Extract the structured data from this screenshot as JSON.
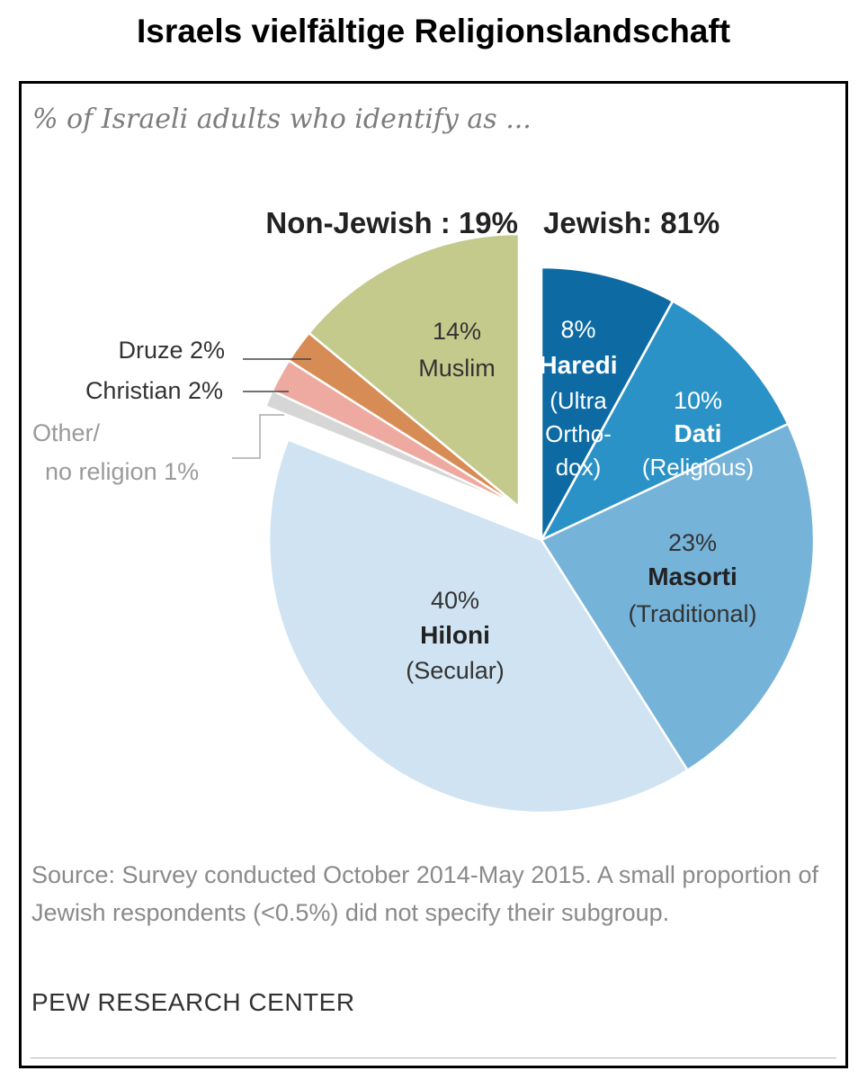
{
  "page_title": "Israels vielfältige Religionslandschaft",
  "chart_data": {
    "type": "pie",
    "subtitle": "% of Israeli adults who identify as ...",
    "groups": [
      {
        "label": "Non-Jewish : 19%",
        "value": 19
      },
      {
        "label": "Jewish: 81%",
        "value": 81
      }
    ],
    "slices": [
      {
        "key": "haredi",
        "group": "Jewish",
        "value": 8,
        "pct_label": "8%",
        "name": "Haredi",
        "sub": [
          "(Ultra",
          "Ortho-",
          "dox)"
        ],
        "color": "#0d6aa3",
        "text_color": "#ffffff"
      },
      {
        "key": "dati",
        "group": "Jewish",
        "value": 10,
        "pct_label": "10%",
        "name": "Dati",
        "sub": [
          "(Religious)"
        ],
        "color": "#2b92c7",
        "text_color": "#ffffff"
      },
      {
        "key": "masorti",
        "group": "Jewish",
        "value": 23,
        "pct_label": "23%",
        "name": "Masorti",
        "sub": [
          "(Traditional)"
        ],
        "color": "#76b3d9",
        "text_color": "#333333"
      },
      {
        "key": "hiloni",
        "group": "Jewish",
        "value": 40,
        "pct_label": "40%",
        "name": "Hiloni",
        "sub": [
          "(Secular)"
        ],
        "color": "#cfe3f2",
        "text_color": "#333333"
      },
      {
        "key": "other",
        "group": "Non-Jewish",
        "value": 1,
        "label": [
          "Other/",
          "no religion 1%"
        ],
        "color": "#d6d6d6",
        "text_color": "#9a9a9a"
      },
      {
        "key": "christian",
        "group": "Non-Jewish",
        "value": 2,
        "label": [
          "Christian 2%"
        ],
        "color": "#eeaaa0",
        "text_color": "#333333"
      },
      {
        "key": "druze",
        "group": "Non-Jewish",
        "value": 2,
        "label": [
          "Druze 2%"
        ],
        "color": "#d88c55",
        "text_color": "#333333"
      },
      {
        "key": "muslim",
        "group": "Non-Jewish",
        "value": 14,
        "pct_label": "14%",
        "name": "Muslim",
        "color": "#c4ca8c",
        "text_color": "#333333"
      }
    ]
  },
  "source": "Source: Survey conducted October 2014-May 2015. A small proportion of Jewish respondents (<0.5%) did not specify their subgroup.",
  "credit": "PEW RESEARCH CENTER"
}
